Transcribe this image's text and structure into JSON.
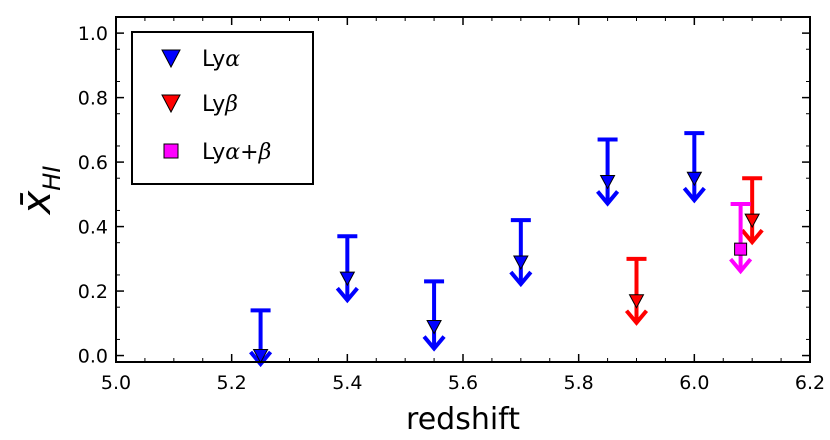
{
  "chart_data": {
    "type": "scatter",
    "xlabel": "redshift",
    "ylabel_main": "x̄",
    "ylabel_sub": "HI",
    "xlim": [
      5.0,
      6.2
    ],
    "ylim": [
      -0.02,
      1.05
    ],
    "xticks": [
      5.0,
      5.2,
      5.4,
      5.6,
      5.8,
      6.0,
      6.2
    ],
    "xtick_labels": [
      "5.0",
      "5.2",
      "5.4",
      "5.6",
      "5.8",
      "6.0",
      "6.2"
    ],
    "yticks": [
      0.0,
      0.2,
      0.4,
      0.6,
      0.8,
      1.0
    ],
    "ytick_labels": [
      "0.0",
      "0.2",
      "0.4",
      "0.6",
      "0.8",
      "1.0"
    ],
    "grid": false,
    "legend_position": "top-left",
    "series": [
      {
        "name": "Lyα",
        "legend_main": "Ly",
        "legend_greek": "α",
        "marker": "triangle-down",
        "color": "#0000ff",
        "points": [
          {
            "x": 5.25,
            "y": 0.0,
            "upper": 0.14
          },
          {
            "x": 5.4,
            "y": 0.24,
            "upper": 0.37
          },
          {
            "x": 5.55,
            "y": 0.09,
            "upper": 0.23
          },
          {
            "x": 5.7,
            "y": 0.29,
            "upper": 0.42
          },
          {
            "x": 5.85,
            "y": 0.54,
            "upper": 0.67
          },
          {
            "x": 6.0,
            "y": 0.55,
            "upper": 0.69
          }
        ]
      },
      {
        "name": "Lyβ",
        "legend_main": "Ly",
        "legend_greek": "β",
        "marker": "triangle-down",
        "color": "#ff0000",
        "points": [
          {
            "x": 5.9,
            "y": 0.17,
            "upper": 0.3
          },
          {
            "x": 6.1,
            "y": 0.42,
            "upper": 0.55
          }
        ]
      },
      {
        "name": "Lyα+β",
        "legend_main": "Ly",
        "legend_greek": "α",
        "legend_tail": "+β",
        "marker": "square",
        "color": "#ff00ff",
        "points": [
          {
            "x": 6.08,
            "y": 0.33,
            "upper": 0.47
          }
        ]
      }
    ]
  }
}
